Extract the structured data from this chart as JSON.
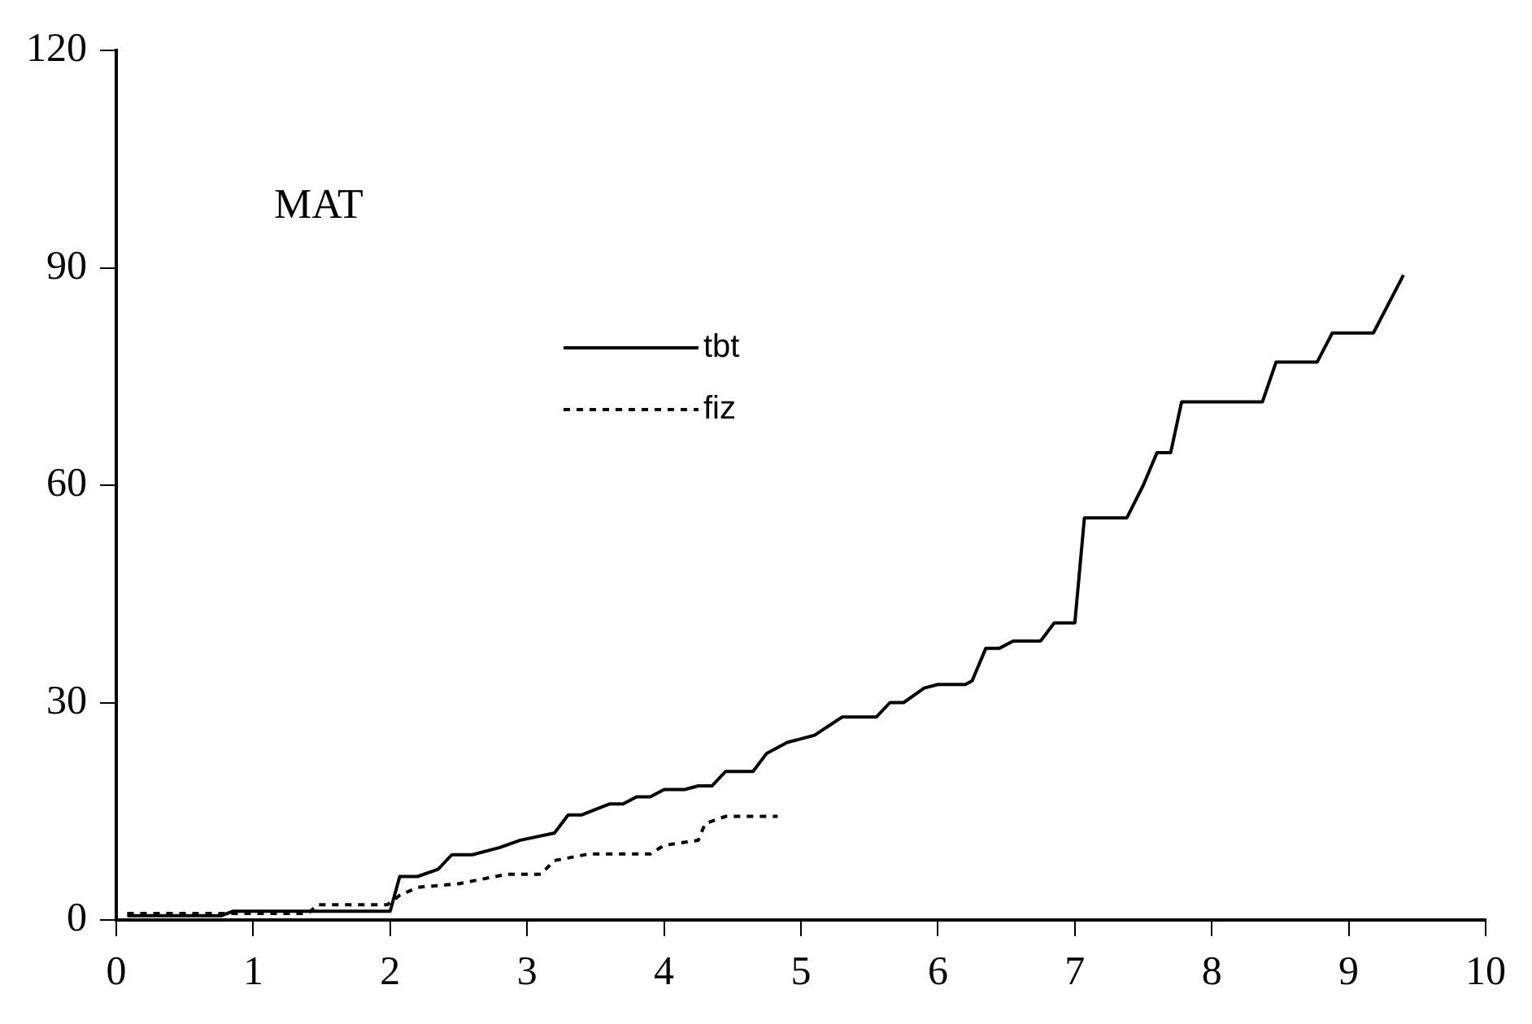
{
  "chart_data": {
    "type": "line",
    "title": "MAT",
    "xlim": [
      0,
      10
    ],
    "xticks": [
      0,
      1,
      2,
      3,
      4,
      5,
      6,
      7,
      8,
      9,
      10
    ],
    "ylim": [
      0,
      120
    ],
    "yticks": [
      0,
      30,
      60,
      90,
      120
    ],
    "grid": false,
    "legend": "top left",
    "marker": "none",
    "series": [
      {
        "name": "tbt",
        "color": "#000000",
        "line_style": "solid",
        "x": [
          0.08,
          0.77,
          0.85,
          2.0,
          2.07,
          2.2,
          2.35,
          2.45,
          2.6,
          2.8,
          2.95,
          3.2,
          3.3,
          3.4,
          3.6,
          3.7,
          3.8,
          3.9,
          4.0,
          4.15,
          4.25,
          4.35,
          4.45,
          4.65,
          4.75,
          4.9,
          5.0,
          5.1,
          5.3,
          5.55,
          5.65,
          5.75,
          5.9,
          6.0,
          6.2,
          6.25,
          6.35,
          6.45,
          6.55,
          6.75,
          6.85,
          7.0,
          7.07,
          7.38,
          7.5,
          7.6,
          7.7,
          7.78,
          8.37,
          8.47,
          8.77,
          8.88,
          9.18,
          9.4
        ],
        "values": [
          0.6,
          0.6,
          1.2,
          1.2,
          6,
          6,
          7,
          9,
          9,
          10,
          11,
          12,
          14.5,
          14.5,
          16,
          16,
          17,
          17,
          18,
          18,
          18.5,
          18.5,
          20.5,
          20.5,
          23,
          24.5,
          25,
          25.5,
          28,
          28,
          30,
          30,
          32,
          32.5,
          32.5,
          33,
          37.5,
          37.5,
          38.5,
          38.5,
          41,
          41,
          55.5,
          55.5,
          60,
          64.5,
          64.5,
          71.5,
          71.5,
          77,
          77,
          81,
          81,
          89
        ]
      },
      {
        "name": "fiz",
        "color": "#000000",
        "line_style": "dotted",
        "x": [
          0.08,
          1.4,
          1.47,
          1.98,
          2.07,
          2.2,
          2.5,
          2.85,
          3.1,
          3.2,
          3.45,
          3.9,
          4.0,
          4.25,
          4.3,
          4.45,
          4.83
        ],
        "values": [
          0.9,
          0.9,
          2.1,
          2.1,
          3.4,
          4.5,
          5,
          6.3,
          6.3,
          8.2,
          9.1,
          9.1,
          10.3,
          11,
          13.3,
          14.3,
          14.3
        ]
      }
    ]
  }
}
